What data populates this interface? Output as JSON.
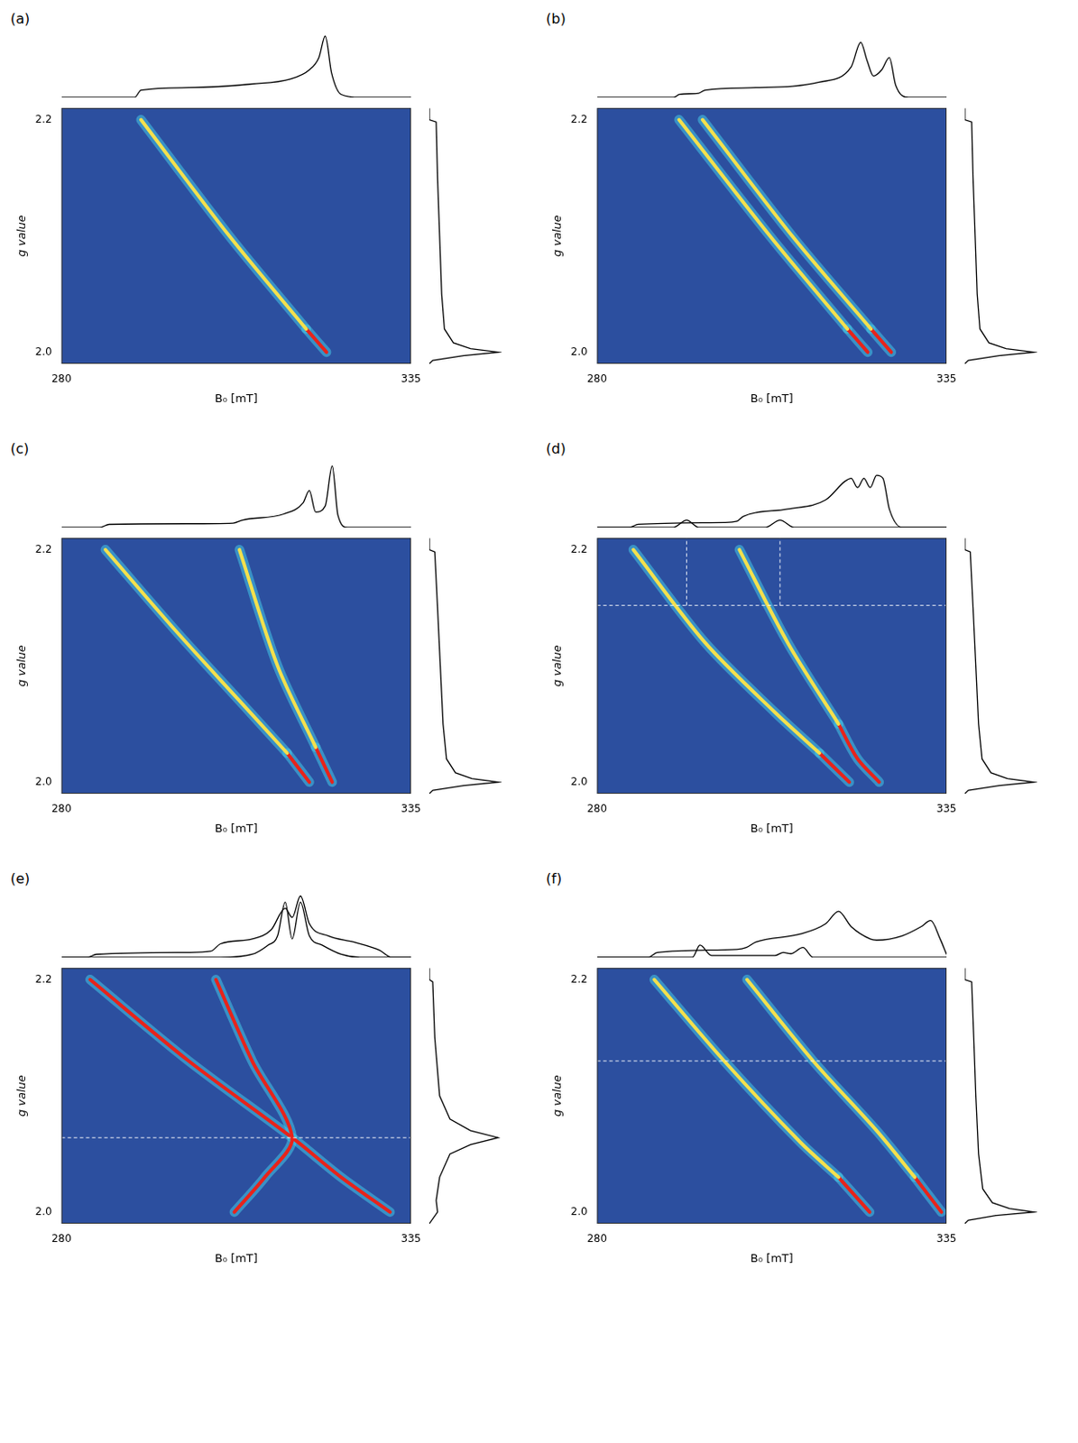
{
  "chart_data": [
    {
      "type": "scatter",
      "title": "(a)",
      "x_label": "B₀ [mT]",
      "y_label": "g value",
      "xlim": [
        280,
        335
      ],
      "xticks": [
        280,
        335
      ],
      "ylim": [
        1.99,
        2.21
      ],
      "yticks": [
        {
          "value": 2,
          "label": "2.0"
        },
        2.2
      ],
      "grid": false,
      "series": [
        {
          "color": "#f4e04d",
          "x": [
            292.5,
            306.4,
            318.5
          ],
          "values": [
            2.2,
            2.1,
            2.02
          ]
        },
        {
          "color": "#e8231a",
          "x": [
            318.5,
            321.7
          ],
          "values": [
            2.02,
            2.0
          ]
        }
      ],
      "top_spectra": [
        {
          "x": [
            280,
            291.5,
            292.5,
            300,
            310,
            316,
            319,
            320.5,
            321.5,
            322.5,
            324,
            327,
            335
          ],
          "values": [
            0,
            0,
            0.12,
            0.16,
            0.22,
            0.3,
            0.45,
            0.65,
            1.0,
            0.4,
            0.05,
            0,
            0
          ]
        }
      ],
      "right_spectrum": {
        "g": [
          2.21,
          2.2,
          2.198,
          2.15,
          2.1,
          2.05,
          2.02,
          2.008,
          2.003,
          2.0,
          1.997,
          1.993,
          1.99
        ],
        "values": [
          0,
          0,
          0.1,
          0.12,
          0.15,
          0.18,
          0.22,
          0.35,
          0.6,
          1.0,
          0.5,
          0.05,
          0
        ]
      }
    },
    {
      "type": "scatter",
      "title": "(b)",
      "x_label": "B₀ [mT]",
      "y_label": "g value",
      "xlim": [
        280,
        335
      ],
      "xticks": [
        280,
        335
      ],
      "ylim": [
        1.99,
        2.21
      ],
      "yticks": [
        {
          "value": 2,
          "label": "2.0"
        },
        2.2
      ],
      "grid": false,
      "series": [
        {
          "color": "#f4e04d",
          "x": [
            292.9,
            307.2,
            319.4
          ],
          "values": [
            2.2,
            2.1,
            2.02
          ]
        },
        {
          "color": "#e8231a",
          "x": [
            319.4,
            322.6
          ],
          "values": [
            2.02,
            2.0
          ]
        },
        {
          "color": "#f4e04d",
          "x": [
            296.6,
            310.7,
            323.1
          ],
          "values": [
            2.2,
            2.1,
            2.02
          ]
        },
        {
          "color": "#e8231a",
          "x": [
            323.1,
            326.3
          ],
          "values": [
            2.02,
            2.0
          ]
        }
      ],
      "top_spectra": [
        {
          "x": [
            280,
            292,
            293,
            296,
            297,
            305,
            315,
            320,
            321.5,
            322.5,
            323.5,
            324.8,
            326,
            327,
            329,
            335
          ],
          "values": [
            0,
            0,
            0.05,
            0.07,
            0.12,
            0.16,
            0.25,
            0.5,
            0.9,
            0.6,
            0.35,
            0.45,
            0.65,
            0.2,
            0,
            0
          ]
        }
      ],
      "right_spectrum": {
        "g": [
          2.21,
          2.2,
          2.198,
          2.15,
          2.1,
          2.05,
          2.02,
          2.008,
          2.003,
          2.0,
          1.997,
          1.993,
          1.99
        ],
        "values": [
          0,
          0,
          0.1,
          0.12,
          0.15,
          0.18,
          0.22,
          0.35,
          0.6,
          1.0,
          0.5,
          0.05,
          0
        ]
      }
    },
    {
      "type": "scatter",
      "title": "(c)",
      "x_label": "B₀ [mT]",
      "y_label": "g value",
      "xlim": [
        280,
        335
      ],
      "xticks": [
        280,
        335
      ],
      "ylim": [
        1.99,
        2.21
      ],
      "yticks": [
        {
          "value": 2,
          "label": "2.0"
        },
        2.2
      ],
      "grid": false,
      "series": [
        {
          "color": "#f4e04d",
          "x": [
            286.9,
            298,
            308,
            315.5
          ],
          "values": [
            2.2,
            2.13,
            2.07,
            2.025
          ]
        },
        {
          "color": "#e8231a",
          "x": [
            315.5,
            319
          ],
          "values": [
            2.025,
            2.0
          ]
        },
        {
          "color": "#f4e04d",
          "x": [
            308,
            314,
            320
          ],
          "values": [
            2.2,
            2.1,
            2.03
          ]
        },
        {
          "color": "#e8231a",
          "x": [
            320,
            322.6
          ],
          "values": [
            2.03,
            2.0
          ]
        }
      ],
      "top_spectra": [
        {
          "x": [
            280,
            286,
            287.5,
            300,
            307,
            308.5,
            315,
            318,
            319,
            320,
            321.5,
            322.6,
            323.5,
            325,
            335
          ],
          "values": [
            0,
            0,
            0.05,
            0.06,
            0.07,
            0.12,
            0.22,
            0.4,
            0.6,
            0.25,
            0.35,
            1.0,
            0.2,
            0,
            0
          ]
        }
      ],
      "right_spectrum": {
        "g": [
          2.21,
          2.2,
          2.198,
          2.15,
          2.1,
          2.05,
          2.02,
          2.008,
          2.003,
          2.0,
          1.997,
          1.993,
          1.99
        ],
        "values": [
          0,
          0,
          0.08,
          0.12,
          0.16,
          0.2,
          0.25,
          0.38,
          0.62,
          1.0,
          0.5,
          0.05,
          0
        ]
      }
    },
    {
      "type": "scatter",
      "title": "(d)",
      "x_label": "B₀ [mT]",
      "y_label": "g value",
      "xlim": [
        280,
        335
      ],
      "xticks": [
        280,
        335
      ],
      "ylim": [
        1.99,
        2.21
      ],
      "yticks": [
        {
          "value": 2,
          "label": "2.0"
        },
        2.2
      ],
      "grid": false,
      "series": [
        {
          "color": "#f4e04d",
          "x": [
            285.7,
            297,
            308,
            315
          ],
          "values": [
            2.2,
            2.12,
            2.06,
            2.025
          ]
        },
        {
          "color": "#e8231a",
          "x": [
            315,
            319.7
          ],
          "values": [
            2.025,
            2.0
          ]
        },
        {
          "color": "#f4e04d",
          "x": [
            302.4,
            310,
            318
          ],
          "values": [
            2.2,
            2.12,
            2.05
          ]
        },
        {
          "color": "#e8231a",
          "x": [
            318,
            321,
            324.4
          ],
          "values": [
            2.05,
            2.02,
            2.0
          ]
        }
      ],
      "top_spectra": [
        {
          "x": [
            280,
            285,
            286.5,
            300,
            302,
            303,
            310,
            316,
            319,
            320,
            321,
            322,
            323,
            324,
            325,
            326,
            328,
            335
          ],
          "values": [
            0,
            0,
            0.05,
            0.08,
            0.1,
            0.18,
            0.3,
            0.45,
            0.75,
            0.8,
            0.65,
            0.8,
            0.65,
            0.85,
            0.8,
            0.3,
            0,
            0
          ]
        },
        {
          "x": [
            280,
            292,
            294.1,
            296,
            306.5,
            308.8,
            311,
            335
          ],
          "values": [
            0,
            0,
            0.12,
            0,
            0,
            0.12,
            0,
            0
          ]
        }
      ],
      "right_spectrum": {
        "g": [
          2.21,
          2.2,
          2.198,
          2.15,
          2.1,
          2.05,
          2.02,
          2.008,
          2.003,
          2.0,
          1.997,
          1.993,
          1.99
        ],
        "values": [
          0,
          0,
          0.08,
          0.12,
          0.16,
          0.2,
          0.25,
          0.38,
          0.62,
          1.0,
          0.5,
          0.05,
          0
        ]
      },
      "slice": {
        "g": 2.152,
        "peaks": [
          294.1,
          308.8
        ]
      }
    },
    {
      "type": "scatter",
      "title": "(e)",
      "x_label": "B₀ [mT]",
      "y_label": "g value",
      "xlim": [
        280,
        335
      ],
      "xticks": [
        280,
        335
      ],
      "ylim": [
        1.99,
        2.21
      ],
      "yticks": [
        {
          "value": 2,
          "label": "2.0"
        },
        2.2
      ],
      "grid": false,
      "series": [
        {
          "color": "#e8231a",
          "x": [
            284.5,
            300,
            316.3,
            324,
            331.7
          ],
          "values": [
            2.2,
            2.13,
            2.064,
            2.03,
            2.0
          ]
        },
        {
          "color": "#e8231a",
          "x": [
            304.3,
            310,
            316.3,
            312,
            307.2
          ],
          "values": [
            2.2,
            2.13,
            2.064,
            2.03,
            2.0
          ]
        }
      ],
      "top_spectra": [
        {
          "x": [
            280,
            284,
            285.5,
            300,
            303.5,
            305,
            310,
            313,
            315.2,
            316.3,
            317.6,
            319,
            322,
            326,
            330,
            332,
            335
          ],
          "values": [
            0,
            0,
            0.05,
            0.08,
            0.1,
            0.22,
            0.3,
            0.45,
            0.8,
            0.65,
            1.0,
            0.55,
            0.35,
            0.25,
            0.12,
            0,
            0
          ]
        },
        {
          "x": [
            280,
            305,
            310,
            312.5,
            314,
            315.2,
            316.3,
            317.6,
            319,
            321,
            324,
            327,
            335
          ],
          "values": [
            0,
            0,
            0.05,
            0.2,
            0.35,
            0.9,
            0.3,
            0.9,
            0.35,
            0.2,
            0.05,
            0,
            0
          ]
        }
      ],
      "right_spectrum": {
        "g": [
          2.21,
          2.2,
          2.198,
          2.15,
          2.1,
          2.08,
          2.07,
          2.064,
          2.058,
          2.05,
          2.03,
          2.01,
          2.0,
          1.99
        ],
        "values": [
          0,
          0,
          0.05,
          0.08,
          0.15,
          0.3,
          0.6,
          1.0,
          0.6,
          0.3,
          0.15,
          0.1,
          0.12,
          0
        ]
      },
      "slice": {
        "g": 2.064
      }
    },
    {
      "type": "scatter",
      "title": "(f)",
      "x_label": "B₀ [mT]",
      "y_label": "g value",
      "xlim": [
        280,
        335
      ],
      "xticks": [
        280,
        335
      ],
      "ylim": [
        1.99,
        2.21
      ],
      "yticks": [
        {
          "value": 2,
          "label": "2.0"
        },
        2.2
      ],
      "grid": false,
      "series": [
        {
          "color": "#f4e04d",
          "x": [
            289,
            300,
            312,
            318
          ],
          "values": [
            2.2,
            2.13,
            2.06,
            2.03
          ]
        },
        {
          "color": "#e8231a",
          "x": [
            318,
            322.9
          ],
          "values": [
            2.03,
            2.0
          ]
        },
        {
          "color": "#f4e04d",
          "x": [
            303.6,
            314,
            324,
            330
          ],
          "values": [
            2.2,
            2.13,
            2.07,
            2.03
          ]
        },
        {
          "color": "#e8231a",
          "x": [
            330,
            334.2
          ],
          "values": [
            2.03,
            2.0
          ]
        }
      ],
      "top_spectra": [
        {
          "x": [
            280,
            288,
            289.5,
            302,
            303.5,
            305,
            312,
            316,
            318,
            320,
            323,
            324,
            328,
            331,
            332.5,
            334,
            335
          ],
          "values": [
            0,
            0,
            0.08,
            0.13,
            0.16,
            0.25,
            0.38,
            0.55,
            0.75,
            0.5,
            0.3,
            0.28,
            0.35,
            0.5,
            0.6,
            0.3,
            0.05
          ]
        },
        {
          "x": [
            280,
            295,
            296.2,
            298,
            308,
            309.3,
            310.5,
            312.4,
            314,
            335
          ],
          "values": [
            0,
            0,
            0.2,
            0.03,
            0.03,
            0.08,
            0.06,
            0.16,
            0,
            0
          ]
        }
      ],
      "right_spectrum": {
        "g": [
          2.21,
          2.2,
          2.198,
          2.15,
          2.1,
          2.05,
          2.02,
          2.008,
          2.003,
          2.0,
          1.997,
          1.993,
          1.99
        ],
        "values": [
          0,
          0,
          0.1,
          0.13,
          0.16,
          0.2,
          0.26,
          0.4,
          0.65,
          1.0,
          0.45,
          0.05,
          0
        ]
      },
      "slice": {
        "g": 2.13
      }
    }
  ]
}
